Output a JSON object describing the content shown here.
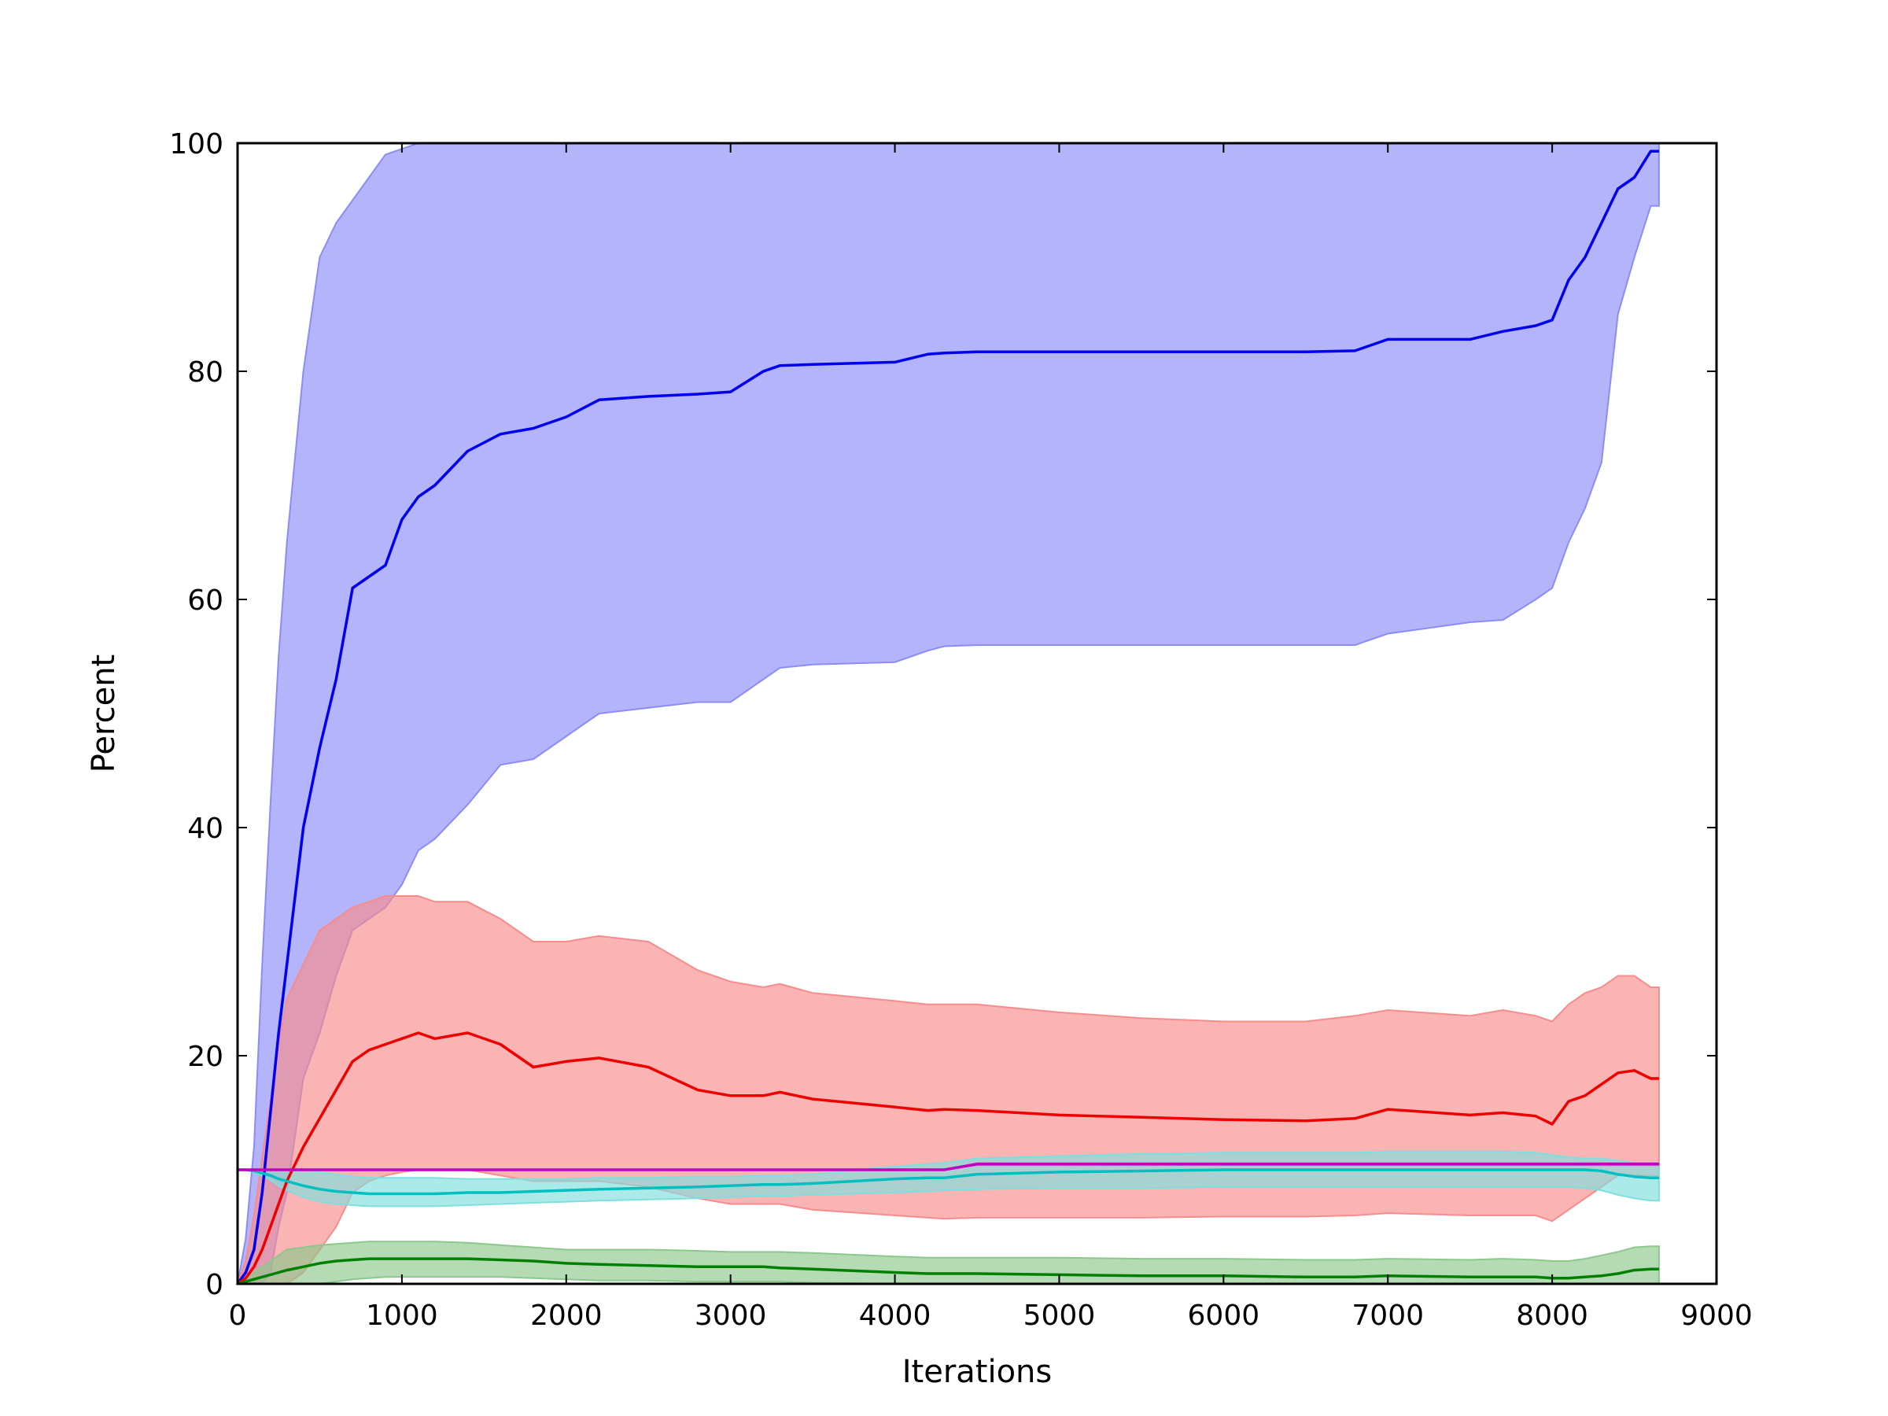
{
  "chart_data": {
    "type": "line",
    "title": "",
    "xlabel": "Iterations",
    "ylabel": "Percent",
    "xlim": [
      0,
      9000
    ],
    "ylim": [
      0,
      100
    ],
    "xticks": [
      "0",
      "1000",
      "2000",
      "3000",
      "4000",
      "5000",
      "6000",
      "7000",
      "8000",
      "9000"
    ],
    "yticks": [
      "0",
      "20",
      "40",
      "60",
      "80",
      "100"
    ],
    "grid": false,
    "legend": false,
    "x": [
      0,
      50,
      100,
      150,
      200,
      250,
      300,
      400,
      500,
      600,
      700,
      800,
      900,
      1000,
      1100,
      1200,
      1400,
      1600,
      1800,
      2000,
      2200,
      2500,
      2800,
      3000,
      3200,
      3300,
      3500,
      4000,
      4200,
      4300,
      4500,
      5000,
      5500,
      6000,
      6500,
      6800,
      7000,
      7500,
      7700,
      7900,
      8000,
      8100,
      8200,
      8300,
      8400,
      8500,
      8600,
      8650
    ],
    "series": [
      {
        "color": "#0000ee",
        "band_color": "#8c8cf8",
        "mean": [
          0,
          1,
          3,
          8,
          15,
          22,
          28,
          40,
          47,
          53,
          61,
          62,
          63,
          67,
          69,
          70,
          73,
          74.5,
          75,
          76,
          77.5,
          77.8,
          78,
          78.2,
          80,
          80.5,
          80.6,
          80.8,
          81.5,
          81.6,
          81.7,
          81.7,
          81.7,
          81.7,
          81.7,
          81.8,
          82.8,
          82.8,
          83.5,
          84,
          84.5,
          88,
          90,
          93,
          96,
          97,
          99.3,
          99.3
        ],
        "upper": [
          0,
          4,
          12,
          28,
          42,
          55,
          65,
          80,
          90,
          93,
          95,
          97,
          99,
          99.5,
          100,
          100,
          100,
          100,
          100,
          100,
          100,
          100,
          100,
          100,
          100,
          100,
          100,
          100,
          100,
          100,
          100,
          100,
          100,
          100,
          100,
          100,
          100,
          100,
          100,
          100,
          100,
          100,
          100,
          100,
          100,
          100,
          100,
          100
        ],
        "lower": [
          0,
          0,
          0,
          0,
          1,
          5,
          8,
          18,
          22,
          27,
          31,
          32,
          33,
          35,
          38,
          39,
          42,
          45.5,
          46,
          48,
          50,
          50.5,
          51,
          51,
          53,
          54,
          54.3,
          54.5,
          55.5,
          55.9,
          56,
          56,
          56,
          56,
          56,
          56,
          57,
          58,
          58.2,
          60,
          61,
          65,
          68,
          72,
          85,
          90,
          94.5,
          94.5
        ]
      },
      {
        "color": "#ee0000",
        "band_color": "#f88c8c",
        "mean": [
          0,
          0.5,
          1.5,
          3,
          5,
          7,
          9,
          12,
          14.5,
          17,
          19.5,
          20.5,
          21,
          21.5,
          22,
          21.5,
          22,
          21,
          19,
          19.5,
          19.8,
          19,
          17,
          16.5,
          16.5,
          16.8,
          16.2,
          15.5,
          15.2,
          15.3,
          15.2,
          14.8,
          14.6,
          14.4,
          14.3,
          14.5,
          15.3,
          14.8,
          15,
          14.7,
          14,
          16,
          16.5,
          17.5,
          18.5,
          18.7,
          18,
          18
        ],
        "upper": [
          0,
          2,
          6,
          11,
          16,
          21,
          25,
          28,
          31,
          32,
          33,
          33.5,
          34,
          34,
          34,
          33.5,
          33.5,
          32,
          30,
          30,
          30.5,
          30,
          27.5,
          26.5,
          26,
          26.3,
          25.5,
          24.8,
          24.5,
          24.5,
          24.5,
          23.8,
          23.3,
          23,
          23,
          23.5,
          24,
          23.5,
          24,
          23.5,
          23,
          24.5,
          25.5,
          26,
          27,
          27,
          26,
          26
        ],
        "lower": [
          0,
          0,
          0,
          0,
          0,
          0,
          0,
          1,
          3,
          5,
          8,
          9,
          9.5,
          9.8,
          10,
          10,
          10,
          9.5,
          9,
          9,
          9,
          8.5,
          7.5,
          7,
          7,
          7,
          6.5,
          6,
          5.8,
          5.7,
          5.8,
          5.8,
          5.8,
          5.9,
          5.9,
          6,
          6.2,
          6,
          6,
          6,
          5.5,
          6.5,
          7.5,
          8.5,
          9.5,
          9.5,
          9.5,
          9.5
        ]
      },
      {
        "color": "#008000",
        "band_color": "#8cc88c",
        "mean": [
          0,
          0.2,
          0.4,
          0.6,
          0.8,
          1,
          1.2,
          1.5,
          1.8,
          2,
          2.1,
          2.2,
          2.2,
          2.2,
          2.2,
          2.2,
          2.2,
          2.1,
          2,
          1.8,
          1.7,
          1.6,
          1.5,
          1.5,
          1.5,
          1.4,
          1.3,
          1,
          0.9,
          0.9,
          0.9,
          0.8,
          0.7,
          0.7,
          0.6,
          0.6,
          0.7,
          0.6,
          0.6,
          0.6,
          0.5,
          0.5,
          0.6,
          0.7,
          0.9,
          1.2,
          1.3,
          1.3
        ],
        "upper": [
          0,
          0.5,
          1,
          1.5,
          2,
          2.5,
          3,
          3.2,
          3.4,
          3.5,
          3.6,
          3.7,
          3.7,
          3.7,
          3.7,
          3.7,
          3.6,
          3.4,
          3.2,
          3,
          3,
          3,
          2.9,
          2.8,
          2.8,
          2.8,
          2.7,
          2.4,
          2.3,
          2.3,
          2.3,
          2.3,
          2.2,
          2.2,
          2.1,
          2.1,
          2.2,
          2.1,
          2.2,
          2.1,
          2,
          2,
          2.2,
          2.5,
          2.8,
          3.2,
          3.3,
          3.3
        ],
        "lower": [
          0,
          0,
          0,
          0,
          0,
          0,
          0,
          0,
          0,
          0.2,
          0.4,
          0.5,
          0.6,
          0.6,
          0.6,
          0.6,
          0.6,
          0.6,
          0.5,
          0.4,
          0.3,
          0.3,
          0.2,
          0.2,
          0.2,
          0.2,
          0.1,
          0,
          0,
          0,
          0,
          0,
          0,
          0,
          0,
          0,
          0,
          0,
          0,
          0,
          0,
          0,
          0,
          0,
          0,
          0,
          0,
          0
        ]
      },
      {
        "color": "#00bfbf",
        "band_color": "#7fdfdf",
        "mean": [
          10,
          10,
          9.9,
          9.7,
          9.5,
          9.2,
          9,
          8.6,
          8.3,
          8.1,
          8,
          7.9,
          7.9,
          7.9,
          7.9,
          7.9,
          8,
          8,
          8.1,
          8.2,
          8.3,
          8.4,
          8.5,
          8.6,
          8.7,
          8.7,
          8.8,
          9.2,
          9.3,
          9.3,
          9.6,
          9.8,
          9.9,
          10,
          10,
          10,
          10,
          10,
          10,
          10,
          10,
          10,
          10,
          9.9,
          9.6,
          9.4,
          9.3,
          9.3
        ],
        "upper": [
          10,
          10,
          10,
          10,
          10,
          10,
          10,
          10,
          9.8,
          9.6,
          9.4,
          9.3,
          9.3,
          9.3,
          9.3,
          9.3,
          9.2,
          9.2,
          9.2,
          9.2,
          9.3,
          9.3,
          9.4,
          9.4,
          9.5,
          9.5,
          9.6,
          10.3,
          10.5,
          10.6,
          11,
          11.2,
          11.4,
          11.5,
          11.5,
          11.5,
          11.6,
          11.6,
          11.6,
          11.5,
          11.3,
          11.1,
          11,
          11,
          10.8,
          10.6,
          10.5,
          10.5
        ],
        "lower": [
          10,
          10,
          9.8,
          9.5,
          9.1,
          8.6,
          8.2,
          7.6,
          7.2,
          7,
          6.9,
          6.8,
          6.8,
          6.8,
          6.8,
          6.8,
          6.9,
          7,
          7.1,
          7.2,
          7.3,
          7.4,
          7.5,
          7.6,
          7.7,
          7.7,
          7.8,
          8,
          8.1,
          8.2,
          8.3,
          8.4,
          8.4,
          8.5,
          8.5,
          8.5,
          8.5,
          8.5,
          8.5,
          8.5,
          8.5,
          8.5,
          8.4,
          8.2,
          7.8,
          7.5,
          7.3,
          7.3
        ]
      },
      {
        "color": "#bf00bf",
        "band_color": "#df7fdf",
        "mean": [
          10,
          10,
          10,
          10,
          10,
          10,
          10,
          10,
          10,
          10,
          10,
          10,
          10,
          10,
          10,
          10,
          10,
          10,
          10,
          10,
          10,
          10,
          10,
          10,
          10,
          10,
          10,
          10,
          10,
          10,
          10.5,
          10.5,
          10.5,
          10.5,
          10.5,
          10.5,
          10.5,
          10.5,
          10.5,
          10.5,
          10.5,
          10.5,
          10.5,
          10.5,
          10.5,
          10.5,
          10.5,
          10.5
        ],
        "upper": [
          10,
          10,
          10,
          10,
          10,
          10,
          10,
          10,
          10,
          10,
          10,
          10,
          10,
          10,
          10,
          10,
          10,
          10,
          10,
          10,
          10,
          10,
          10,
          10,
          10,
          10,
          10,
          10,
          10,
          10,
          10.6,
          10.6,
          10.6,
          10.6,
          10.6,
          10.6,
          10.6,
          10.6,
          10.6,
          10.6,
          10.6,
          10.6,
          10.6,
          10.6,
          10.6,
          10.6,
          10.6,
          10.6
        ],
        "lower": [
          10,
          10,
          10,
          10,
          10,
          10,
          10,
          10,
          10,
          10,
          10,
          10,
          10,
          10,
          10,
          10,
          10,
          10,
          10,
          10,
          10,
          10,
          10,
          10,
          10,
          10,
          10,
          10,
          10,
          10,
          10.4,
          10.4,
          10.4,
          10.4,
          10.4,
          10.4,
          10.4,
          10.4,
          10.4,
          10.4,
          10.4,
          10.4,
          10.4,
          10.4,
          10.4,
          10.4,
          10.4,
          10.4
        ]
      }
    ]
  }
}
